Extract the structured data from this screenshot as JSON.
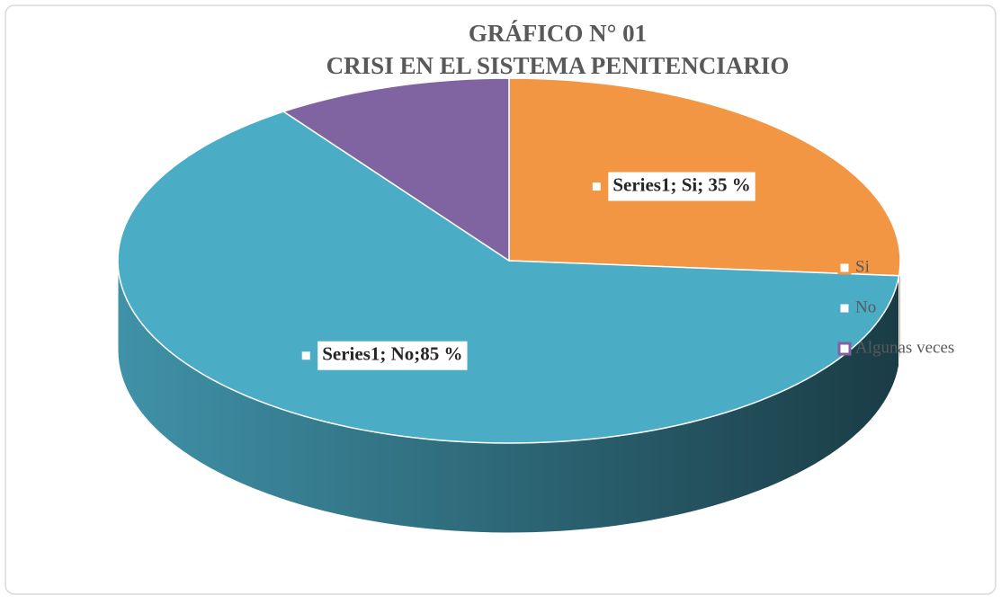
{
  "chart_data": {
    "type": "pie",
    "title": "GRÁFICO N° 01",
    "subtitle": "CRISI EN EL SISTEMA PENITENCIARIO",
    "categories": [
      "Si",
      "No",
      "Algunas veces"
    ],
    "values": [
      35,
      85,
      13
    ],
    "value_labels": [
      "Series1; Si; 35 %",
      "Series1; No;85 %",
      null
    ],
    "colors": [
      "#f39644",
      "#4bacc6",
      "#8064a2"
    ],
    "legend": "right"
  }
}
